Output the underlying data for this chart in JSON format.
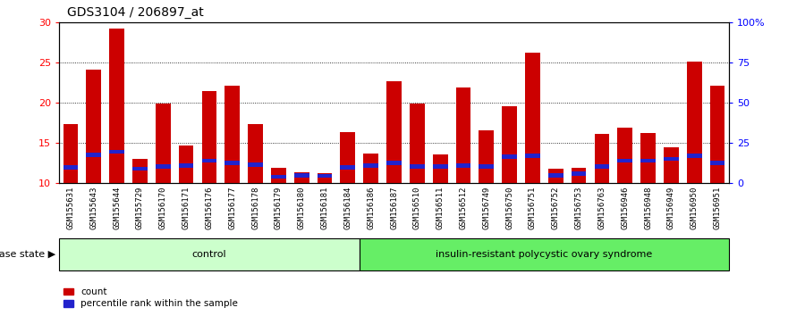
{
  "title": "GDS3104 / 206897_at",
  "samples": [
    "GSM155631",
    "GSM155643",
    "GSM155644",
    "GSM155729",
    "GSM156170",
    "GSM156171",
    "GSM156176",
    "GSM156177",
    "GSM156178",
    "GSM156179",
    "GSM156180",
    "GSM156181",
    "GSM156184",
    "GSM156186",
    "GSM156187",
    "GSM156510",
    "GSM156511",
    "GSM156512",
    "GSM156749",
    "GSM156750",
    "GSM156751",
    "GSM156752",
    "GSM156753",
    "GSM156763",
    "GSM156946",
    "GSM156948",
    "GSM156949",
    "GSM156950",
    "GSM156951"
  ],
  "count_values": [
    17.3,
    24.1,
    29.2,
    13.0,
    19.9,
    14.7,
    21.5,
    22.1,
    17.3,
    11.9,
    11.4,
    11.3,
    16.3,
    13.7,
    22.7,
    19.9,
    13.6,
    21.9,
    16.6,
    19.6,
    26.2,
    11.8,
    11.9,
    16.1,
    16.9,
    16.2,
    14.5,
    25.1,
    22.1
  ],
  "percentile_values": [
    12.0,
    13.5,
    13.9,
    11.8,
    12.1,
    12.2,
    12.8,
    12.5,
    12.3,
    10.8,
    11.0,
    10.9,
    12.0,
    12.2,
    12.5,
    12.1,
    12.1,
    12.2,
    12.1,
    13.3,
    13.4,
    11.0,
    11.2,
    12.1,
    12.8,
    12.8,
    13.0,
    13.4,
    12.5
  ],
  "control_count": 13,
  "disease_count": 16,
  "ymin": 10,
  "ymax": 30,
  "yticks_left": [
    10,
    15,
    20,
    25,
    30
  ],
  "yticks_right": [
    0,
    25,
    50,
    75,
    100
  ],
  "bar_color_red": "#cc0000",
  "bar_color_blue": "#2222cc",
  "bar_width": 0.65,
  "control_label": "control",
  "disease_label": "insulin-resistant polycystic ovary syndrome",
  "disease_state_label": "disease state",
  "legend_count": "count",
  "legend_percentile": "percentile rank within the sample",
  "control_bg": "#ccffcc",
  "disease_bg": "#66ee66",
  "tick_bg": "#cccccc",
  "title_fontsize": 10,
  "tick_fontsize": 6.5,
  "label_fontsize": 8
}
